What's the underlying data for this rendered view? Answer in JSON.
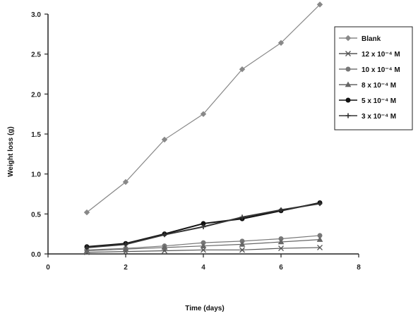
{
  "chart_data": {
    "type": "line",
    "title": "",
    "xlabel": "Time (days)",
    "ylabel": "Weight loss (g)",
    "xlim": [
      0,
      8
    ],
    "ylim": [
      0,
      3.0
    ],
    "x_ticks": [
      "0",
      "2",
      "4",
      "6",
      "8"
    ],
    "y_ticks": [
      "0.0",
      "0.5",
      "1.0",
      "1.5",
      "2.0",
      "2.5",
      "3.0"
    ],
    "x": [
      1,
      2,
      3,
      4,
      5,
      6,
      7
    ],
    "legend_position": "right",
    "grid": false,
    "series": [
      {
        "name": "Blank",
        "marker": "diamond",
        "color": "#888888",
        "values": [
          0.52,
          0.9,
          1.43,
          1.75,
          2.31,
          2.64,
          3.12
        ]
      },
      {
        "name": "12 x 10⁻⁴ M",
        "marker": "x",
        "color": "#555555",
        "values": [
          0.02,
          0.03,
          0.04,
          0.05,
          0.05,
          0.07,
          0.08
        ]
      },
      {
        "name": "10 x 10⁻⁴ M",
        "marker": "circle",
        "color": "#777777",
        "values": [
          0.05,
          0.07,
          0.1,
          0.14,
          0.16,
          0.19,
          0.23
        ]
      },
      {
        "name": "8 x 10⁻⁴ M",
        "marker": "triangle",
        "color": "#666666",
        "values": [
          0.04,
          0.06,
          0.08,
          0.1,
          0.12,
          0.15,
          0.18
        ]
      },
      {
        "name": "5 x 10⁻⁴ M",
        "marker": "circle",
        "color": "#111111",
        "values": [
          0.09,
          0.13,
          0.25,
          0.38,
          0.44,
          0.54,
          0.64
        ]
      },
      {
        "name": "3 x 10⁻⁴ M",
        "marker": "plus",
        "color": "#333333",
        "values": [
          0.08,
          0.12,
          0.24,
          0.34,
          0.46,
          0.55,
          0.63
        ]
      }
    ]
  }
}
